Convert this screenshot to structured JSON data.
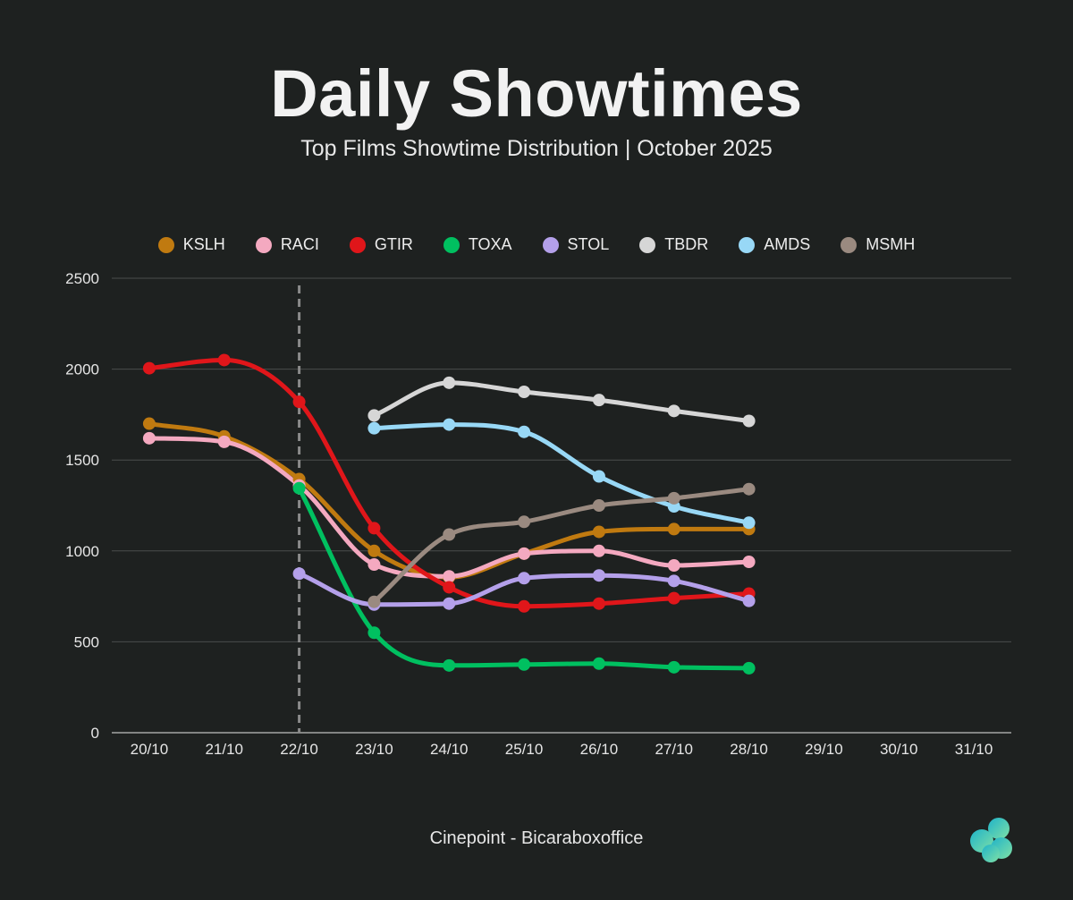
{
  "header": {
    "title": "Daily Showtimes",
    "subtitle": "Top Films Showtime Distribution | October 2025"
  },
  "footer": {
    "source": "Cinepoint - Bicaraboxoffice"
  },
  "logo": {
    "icon": "cloud-logo-icon",
    "colors": [
      "#1fb3c9",
      "#7fe0a6"
    ]
  },
  "chart_data": {
    "type": "line",
    "title": "Daily Showtimes",
    "subtitle": "Top Films Showtime Distribution | October 2025",
    "xlabel": "",
    "ylabel": "",
    "categories": [
      "20/10",
      "21/10",
      "22/10",
      "23/10",
      "24/10",
      "25/10",
      "26/10",
      "27/10",
      "28/10",
      "29/10",
      "30/10",
      "31/10"
    ],
    "ylim": [
      0,
      2500
    ],
    "yticks": [
      0,
      500,
      1000,
      1500,
      2000,
      2500
    ],
    "grid": true,
    "legend_position": "top",
    "marker_line": {
      "category": "22/10",
      "style": "dashed"
    },
    "series": [
      {
        "name": "KSLH",
        "color": "#c07a10",
        "values": [
          1700,
          1630,
          1395,
          1000,
          855,
          985,
          1105,
          1120,
          1120,
          null,
          null,
          null
        ]
      },
      {
        "name": "RACI",
        "color": "#f4a9c0",
        "values": [
          1620,
          1600,
          1360,
          925,
          860,
          985,
          1000,
          920,
          940,
          null,
          null,
          null
        ]
      },
      {
        "name": "GTIR",
        "color": "#e0161a",
        "values": [
          2005,
          2050,
          1820,
          1125,
          800,
          695,
          710,
          740,
          765,
          null,
          null,
          null
        ]
      },
      {
        "name": "TOXA",
        "color": "#00c060",
        "values": [
          null,
          null,
          1345,
          550,
          370,
          375,
          380,
          360,
          355,
          null,
          null,
          null
        ]
      },
      {
        "name": "STOL",
        "color": "#b4a0ea",
        "values": [
          null,
          null,
          875,
          705,
          710,
          850,
          865,
          835,
          725,
          null,
          null,
          null
        ]
      },
      {
        "name": "TBDR",
        "color": "#d6d6d6",
        "values": [
          null,
          null,
          null,
          1745,
          1925,
          1875,
          1830,
          1770,
          1715,
          null,
          null,
          null
        ]
      },
      {
        "name": "AMDS",
        "color": "#98d8f6",
        "values": [
          null,
          null,
          null,
          1675,
          1695,
          1655,
          1410,
          1245,
          1155,
          null,
          null,
          null
        ]
      },
      {
        "name": "MSMH",
        "color": "#9a8a80",
        "values": [
          null,
          null,
          null,
          720,
          1090,
          1160,
          1250,
          1290,
          1340,
          null,
          null,
          null
        ]
      }
    ]
  }
}
